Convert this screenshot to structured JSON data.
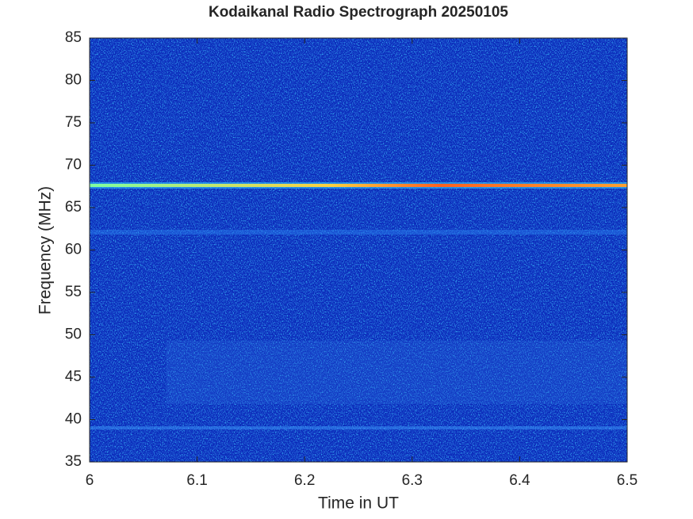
{
  "chart_data": {
    "type": "spectrogram",
    "title": "Kodaikanal Radio Spectrograph  20250105",
    "xlabel": "Time in UT",
    "ylabel": "Frequency (MHz)",
    "xlim": [
      6,
      6.5
    ],
    "xticks": [
      6,
      6.1,
      6.2,
      6.3,
      6.4,
      6.5
    ],
    "ylim": [
      35,
      85
    ],
    "yticks": [
      35,
      40,
      45,
      50,
      55,
      60,
      65,
      70,
      75,
      80,
      85
    ]
  }
}
